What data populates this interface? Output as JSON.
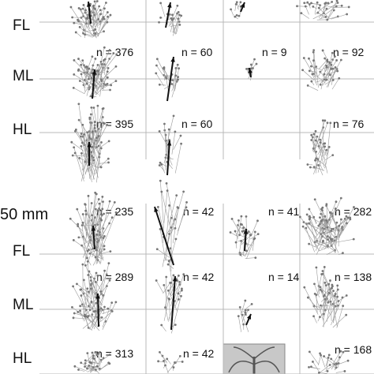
{
  "figure": {
    "scale_label": "50 mm",
    "legs": [
      "FL",
      "ML",
      "HL"
    ],
    "blocks": [
      {
        "rows": [
          {
            "leg": "FL",
            "counts": [
              "",
              "",
              "",
              ""
            ]
          },
          {
            "leg": "ML",
            "counts": [
              "n = 376",
              "n = 60",
              "n = 9",
              "n = 92"
            ]
          },
          {
            "leg": "HL",
            "counts": [
              "n = 395",
              "n = 60",
              "",
              "n = 76"
            ]
          }
        ]
      },
      {
        "rows": [
          {
            "leg": "FL",
            "counts": [
              "n = 235",
              "n = 42",
              "n = 41",
              "n = 282"
            ]
          },
          {
            "leg": "ML",
            "counts": [
              "n = 289",
              "n = 42",
              "n = 14",
              "n = 138"
            ]
          },
          {
            "leg": "HL",
            "counts": [
              "n = 313",
              "n = 42",
              "",
              "n = 168"
            ]
          }
        ]
      }
    ]
  },
  "colors": {
    "rays": "#9a9a9a",
    "vectors": "#111111",
    "axes": "#b8b8b8",
    "inset_bg": "#c8c8c8"
  },
  "icons": [
    "stick-insect-schematic"
  ]
}
